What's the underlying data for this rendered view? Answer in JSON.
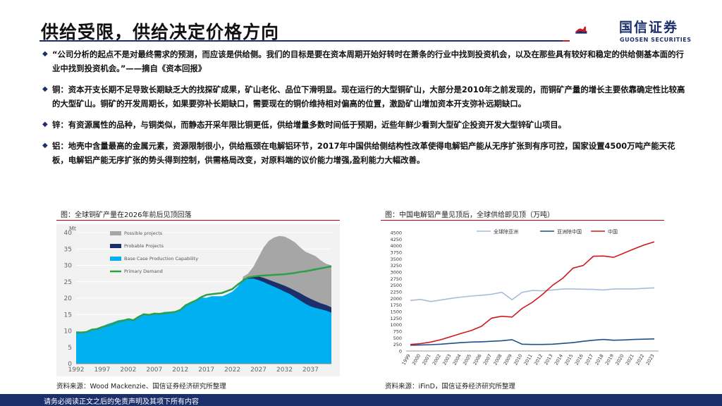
{
  "header": {
    "title": "供给受限，供给决定价格方向",
    "logo_cn": "国信证券",
    "logo_en": "GUOSEN SECURITIES"
  },
  "bullets": [
    "“公司分析的起点不是对最终需求的预测，而应该是供给侧。我们的目标是要在资本周期开始好转时在萧条的行业中找到投资机会，以及在那些具有较好和稳定的供给侧基本面的行业中找到投资机会。”——摘自《资本回报》",
    "铜：资本开支长期不足导致长期缺乏大的找探矿成果，矿山老化、品位下滑明显。现在运行的大型铜矿山，大部分是2010年之前发现的，而铜矿产量的增长主要依靠确定性比较高的大型矿山。铜矿的开发周期长，如果要弥补长期缺口，需要现在的铜价维持相对偏高的位置，激励矿山增加资本开支弥补远期缺口。",
    "锌：有资源属性的品种，与铜类似，而静态开采年限比铜更低，供给增量多数时间低于预期，近些年鲜少看到大型矿企投资开发大型锌矿山项目。",
    "铝：地壳中含量最高的金属元素，资源限制很小，供给瓶颈在电解铝环节，2017年中国供给侧结构性改革使得电解铝产能从无序扩张到有序可控，国家设置4500万吨产能天花板，电解铝产能无序扩张的势头得到控制，供需格局改变，对原料端的议价能力增强,盈利能力大幅改善。"
  ],
  "left_chart": {
    "caption": "图：全球铜矿产量在2026年前后见顶回落",
    "source": "资料来源：Wood Mackenzie、国信证券经济研究所整理"
  },
  "right_chart": {
    "caption": "图：中国电解铝产量见顶后，全球供给即见顶（万吨）",
    "source": "资料来源：iFinD，国信证券经济研究所整理"
  },
  "footer": {
    "disclaimer": "请务必阅读正文之后的免责声明及其项下所有内容"
  },
  "colors": {
    "navy": "#1b2f6b",
    "red": "#d0181f"
  },
  "chart_data": [
    {
      "type": "area",
      "ylabel": "Mt",
      "ylim": [
        0,
        40
      ],
      "yticks": [
        0,
        5,
        10,
        15,
        20,
        25,
        30,
        35,
        40
      ],
      "xticks": [
        1992,
        1997,
        2002,
        2007,
        2012,
        2017,
        2022,
        2027,
        2032,
        2037
      ],
      "legend_position": "top-left",
      "series": [
        {
          "name": "Possible projects",
          "color": "#a6a6a6",
          "x": [
            2024,
            2025,
            2026,
            2027,
            2028,
            2029,
            2030,
            2031,
            2032,
            2033,
            2034,
            2035,
            2036,
            2037,
            2038,
            2039,
            2040,
            2041
          ],
          "values": [
            26.5,
            27.5,
            29.5,
            32.5,
            35.5,
            37.5,
            38.5,
            39,
            38.8,
            38,
            37,
            35.5,
            34.2,
            33.5,
            32.8,
            31.5,
            30.5,
            30
          ]
        },
        {
          "name": "Probable Projects",
          "color": "#1b2f6b",
          "x": [
            2024,
            2025,
            2026,
            2027,
            2028,
            2029,
            2030,
            2031,
            2032,
            2033,
            2034,
            2035,
            2036,
            2037,
            2038,
            2039,
            2040,
            2041
          ],
          "values": [
            25.8,
            26.3,
            26.6,
            26.6,
            26.2,
            25.6,
            25,
            24.4,
            23.8,
            23.1,
            22.3,
            21.5,
            20.6,
            19.8,
            19.1,
            18.4,
            17.9,
            17.2
          ]
        },
        {
          "name": "Base Case Production Capability",
          "color": "#00b0f0",
          "x": [
            1992,
            1993,
            1994,
            1995,
            1996,
            1997,
            1998,
            1999,
            2000,
            2001,
            2002,
            2003,
            2004,
            2005,
            2006,
            2007,
            2008,
            2009,
            2010,
            2011,
            2012,
            2013,
            2014,
            2015,
            2016,
            2017,
            2018,
            2019,
            2020,
            2021,
            2022,
            2023,
            2024,
            2025,
            2026,
            2027,
            2028,
            2029,
            2030,
            2031,
            2032,
            2033,
            2034,
            2035,
            2036,
            2037,
            2038,
            2039,
            2040,
            2041
          ],
          "values": [
            9.4,
            9.5,
            9.6,
            10.1,
            10.7,
            11.4,
            12.1,
            12.6,
            13.2,
            13.5,
            13.5,
            13.5,
            14.6,
            14.9,
            15,
            15.4,
            15.4,
            15.8,
            15.9,
            16,
            16.6,
            18,
            18.6,
            19.1,
            20.2,
            20.1,
            20.6,
            20.6,
            20.6,
            21.2,
            22,
            23.5,
            25.5,
            25.9,
            26,
            25.5,
            24.9,
            24.2,
            23.5,
            22.8,
            22,
            21.3,
            20.3,
            19.3,
            18.3,
            17.5,
            17,
            16.6,
            16.2,
            15.6
          ]
        },
        {
          "name": "Primary Demand",
          "color": "#2e9e48",
          "x": [
            1992,
            1993,
            1994,
            1995,
            1996,
            1997,
            1998,
            1999,
            2000,
            2001,
            2002,
            2003,
            2004,
            2005,
            2006,
            2007,
            2008,
            2009,
            2010,
            2011,
            2012,
            2013,
            2014,
            2015,
            2016,
            2017,
            2018,
            2019,
            2020,
            2021,
            2022,
            2023,
            2024,
            2025,
            2026,
            2027,
            2028,
            2029,
            2030,
            2031,
            2032,
            2033,
            2034,
            2035,
            2036,
            2037,
            2038,
            2039,
            2040,
            2041
          ],
          "values": [
            9.6,
            9.5,
            9.7,
            10.4,
            10.6,
            11.2,
            11.6,
            12.1,
            12.8,
            13.1,
            13.6,
            13.3,
            14.3,
            15.1,
            14.9,
            15.3,
            15.2,
            15.4,
            15.6,
            15.8,
            16.4,
            17.8,
            18.6,
            19.3,
            20.3,
            21,
            21.2,
            21.4,
            21.6,
            22.2,
            22.8,
            24.1,
            25.3,
            26.3,
            26.6,
            26.8,
            26.9,
            27,
            27.1,
            27.2,
            27.3,
            27.5,
            27.7,
            28,
            28.2,
            28.5,
            28.8,
            29.1,
            29.4,
            29.7
          ]
        }
      ]
    },
    {
      "type": "line",
      "ylim": [
        0,
        4500
      ],
      "yticks": [
        0,
        250,
        500,
        750,
        1000,
        1250,
        1500,
        1750,
        2000,
        2250,
        2500,
        2750,
        3000,
        3250,
        3500,
        3750,
        4000,
        4250,
        4500
      ],
      "xticks": [
        1999,
        2000,
        2001,
        2002,
        2003,
        2004,
        2005,
        2006,
        2007,
        2008,
        2009,
        2010,
        2011,
        2012,
        2013,
        2014,
        2015,
        2016,
        2017,
        2018,
        2019,
        2020,
        2021,
        2022,
        2023
      ],
      "legend_position": "top",
      "series": [
        {
          "name": "全球除亚洲",
          "color": "#a8bdd8",
          "x": [
            1999,
            2000,
            2001,
            2002,
            2003,
            2004,
            2005,
            2006,
            2007,
            2008,
            2009,
            2010,
            2011,
            2012,
            2013,
            2014,
            2015,
            2016,
            2017,
            2018,
            2019,
            2020,
            2021,
            2022,
            2023
          ],
          "values": [
            1920,
            1960,
            1880,
            1940,
            2000,
            2050,
            2090,
            2120,
            2160,
            2230,
            1950,
            2230,
            2300,
            2290,
            2320,
            2360,
            2360,
            2350,
            2340,
            2320,
            2360,
            2360,
            2360,
            2380,
            2400
          ]
        },
        {
          "name": "亚洲除中国",
          "color": "#1f4e8c",
          "x": [
            1999,
            2000,
            2001,
            2002,
            2003,
            2004,
            2005,
            2006,
            2007,
            2008,
            2009,
            2010,
            2011,
            2012,
            2013,
            2014,
            2015,
            2016,
            2017,
            2018,
            2019,
            2020,
            2021,
            2022,
            2023
          ],
          "values": [
            220,
            230,
            240,
            260,
            290,
            320,
            340,
            350,
            370,
            390,
            430,
            260,
            250,
            250,
            260,
            290,
            320,
            370,
            410,
            440,
            410,
            420,
            440,
            450,
            460
          ]
        },
        {
          "name": "中国",
          "color": "#d0181f",
          "x": [
            1999,
            2000,
            2001,
            2002,
            2003,
            2004,
            2005,
            2006,
            2007,
            2008,
            2009,
            2010,
            2011,
            2012,
            2013,
            2014,
            2015,
            2016,
            2017,
            2018,
            2019,
            2020,
            2021,
            2022,
            2023
          ],
          "values": [
            250,
            280,
            340,
            430,
            550,
            670,
            780,
            940,
            1250,
            1320,
            1290,
            1620,
            1850,
            2150,
            2500,
            2770,
            3150,
            3250,
            3600,
            3610,
            3560,
            3720,
            3880,
            4030,
            4150
          ]
        }
      ]
    }
  ]
}
